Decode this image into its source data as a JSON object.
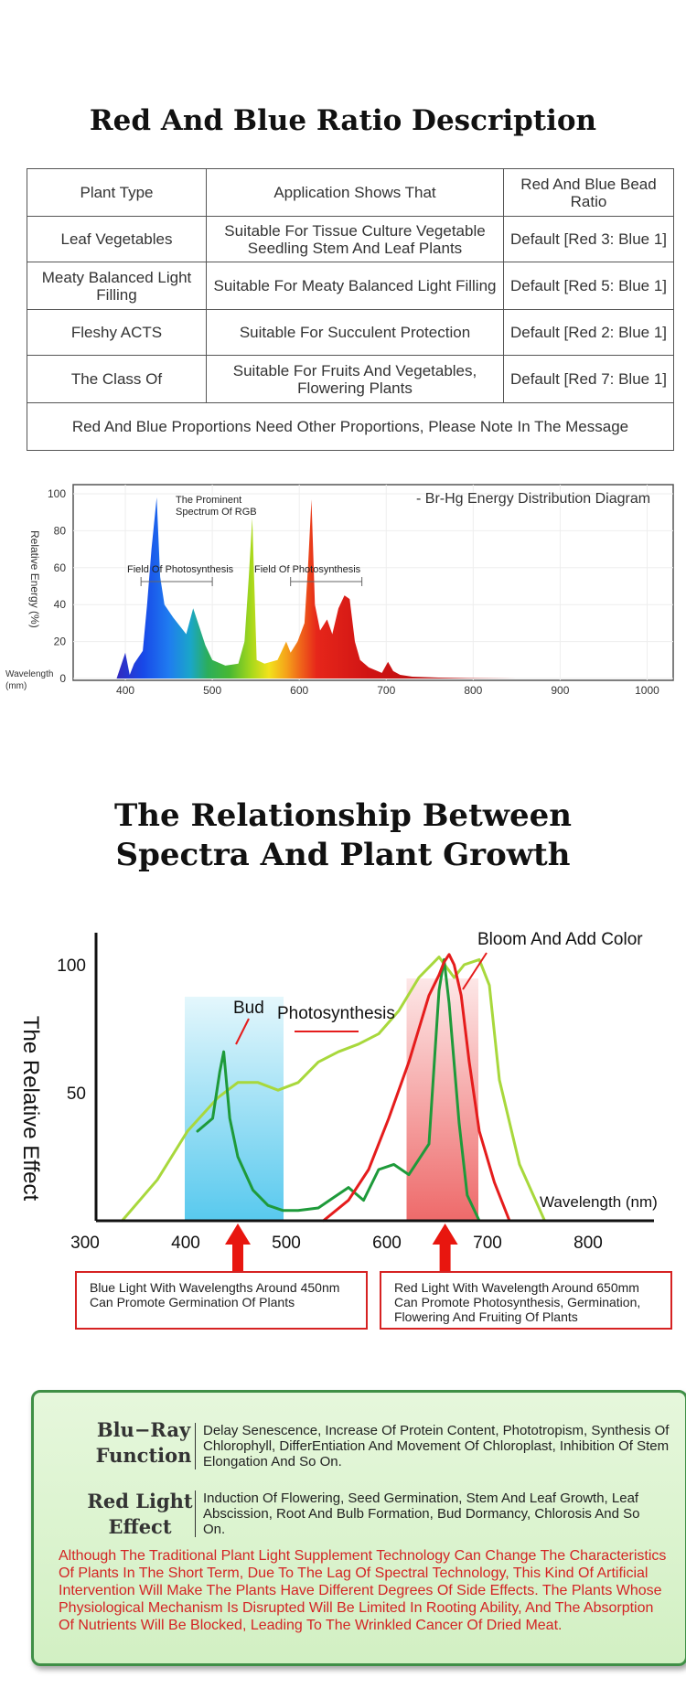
{
  "ratio_section": {
    "title": "Red And Blue Ratio Description",
    "headers": [
      "Plant Type",
      "Application Shows That",
      "Red And Blue Bead Ratio"
    ],
    "rows": [
      {
        "plant": "Leaf Vegetables",
        "application": "Suitable For Tissue Culture Vegetable Seedling Stem And Leaf Plants",
        "ratio": "Default [Red 3: Blue 1]"
      },
      {
        "plant": "Meaty Balanced Light Filling",
        "application": "Suitable For Meaty Balanced Light Filling",
        "ratio": "Default [Red 5: Blue 1]"
      },
      {
        "plant": "Fleshy ACTS",
        "application": "Suitable For Succulent Protection",
        "ratio": "Default [Red 2: Blue 1]"
      },
      {
        "plant": "The Class Of",
        "application": "Suitable For Fruits And Vegetables, Flowering Plants",
        "ratio": "Default [Red 7: Blue 1]"
      }
    ],
    "footer": "Red And Blue Proportions Need Other Proportions, Please Note In The Message"
  },
  "chart_data": [
    {
      "type": "area",
      "title": "- Br-Hg Energy Distribution Diagram",
      "xlabel": "Wavelength (mm)",
      "ylabel": "Relative Energy (%)",
      "xlim": [
        340,
        1030
      ],
      "ylim": [
        0,
        100
      ],
      "x_ticks": [
        400,
        500,
        600,
        700,
        800,
        900,
        1000
      ],
      "y_ticks": [
        0,
        20,
        40,
        60,
        80,
        100
      ],
      "series": [
        {
          "x": [
            390,
            400,
            405,
            410,
            420,
            425,
            430,
            436,
            440,
            445,
            455,
            470,
            478,
            485,
            492,
            500,
            515,
            530,
            537,
            542,
            546,
            551,
            560,
            575,
            585,
            590,
            598,
            606,
            610,
            614,
            618,
            624,
            632,
            638,
            645,
            652,
            658,
            664,
            670,
            680,
            695,
            702,
            708,
            716,
            730,
            760,
            800,
            850
          ],
          "values": [
            0,
            14,
            2,
            8,
            15,
            40,
            70,
            98,
            55,
            40,
            33,
            24,
            38,
            28,
            18,
            10,
            7,
            8,
            20,
            55,
            87,
            10,
            8,
            10,
            20,
            14,
            20,
            30,
            60,
            97,
            40,
            26,
            32,
            24,
            38,
            45,
            43,
            20,
            10,
            6,
            3,
            9,
            4,
            2,
            1,
            0.5,
            0.2,
            0
          ]
        }
      ],
      "annotations": [
        "The Prominent Spectrum Of RGB",
        "Field Of Photosynthesis",
        "Field Of Photosynthesis"
      ]
    },
    {
      "type": "line",
      "ylabel": "The Relative Effect",
      "xlabel": "Wavelength (nm)",
      "xlim": [
        300,
        850
      ],
      "ylim": [
        0,
        110
      ],
      "x_ticks": [
        300,
        400,
        500,
        600,
        700,
        800
      ],
      "y_ticks": [
        50,
        100
      ],
      "series": [
        {
          "name": "Photosynthesis",
          "x": [
            335,
            370,
            400,
            430,
            450,
            470,
            490,
            510,
            530,
            550,
            570,
            590,
            610,
            630,
            650,
            665,
            675,
            690,
            700,
            710,
            730,
            755
          ],
          "values": [
            0,
            16,
            35,
            48,
            54,
            54,
            51,
            54,
            62,
            66,
            69,
            73,
            82,
            95,
            103,
            95,
            100,
            102,
            92,
            55,
            22,
            0
          ]
        },
        {
          "name": "Bud",
          "x": [
            410,
            425,
            432,
            436,
            442,
            450,
            465,
            480,
            495,
            510,
            530,
            545,
            560,
            575,
            590,
            605,
            620,
            640,
            650,
            655,
            660,
            670,
            678,
            690
          ],
          "values": [
            35,
            40,
            58,
            66,
            40,
            25,
            12,
            6,
            4,
            4,
            5,
            9,
            13,
            8,
            20,
            22,
            18,
            30,
            90,
            102,
            85,
            38,
            10,
            0
          ]
        },
        {
          "name": "Bloom And Add Color",
          "x": [
            535,
            560,
            580,
            600,
            620,
            630,
            640,
            650,
            655,
            660,
            665,
            672,
            680,
            690,
            705,
            720
          ],
          "values": [
            0,
            8,
            20,
            40,
            62,
            75,
            88,
            96,
            101,
            104,
            100,
            88,
            62,
            35,
            15,
            0
          ]
        }
      ],
      "bands": [
        {
          "label": "blue",
          "from": 400,
          "to": 500
        },
        {
          "label": "red",
          "from": 625,
          "to": 700
        }
      ],
      "annotations": [
        "Bud",
        "Photosynthesis",
        "Bloom And Add Color"
      ],
      "callouts": [
        "Blue Light With Wavelengths Around 450nm Can Promote Germination Of Plants",
        "Red Light With Wavelength Around 650mm Can Promote Photosynthesis, Germination, Flowering And Fruiting Of Plants"
      ]
    }
  ],
  "relationship_section": {
    "title_line1": "The Relationship Between",
    "title_line2": "Spectra And Plant Growth"
  },
  "function_panel": {
    "blue_label_1": "Blu−Ray",
    "blue_label_2": "Function",
    "blue_text": "Delay Senescence, Increase Of Protein Content, Phototropism, Synthesis Of Chlorophyll, DifferEntiation And Movement Of Chloroplast, Inhibition Of Stem Elongation And So On.",
    "red_label_1": "Red Light",
    "red_label_2": "Effect",
    "red_text": "Induction Of Flowering, Seed Germination, Stem And Leaf Growth, Leaf Abscission, Root And Bulb Formation, Bud Dormancy, Chlorosis And So On.",
    "warning": "Although The Traditional Plant Light Supplement Technology Can Change The Characteristics Of Plants In The Short Term, Due To The Lag Of Spectral Technology, This Kind Of Artificial Intervention Will Make The Plants Have Different Degrees Of Side Effects. The Plants Whose Physiological Mechanism Is Disrupted Will Be Limited In Rooting Ability, And The Absorption Of Nutrients Will Be Blocked, Leading To The Wrinkled Cancer Of Dried Meat.",
    "colors": {
      "panel_bg": "#d6f1c8",
      "panel_border": "#3f8f46",
      "warning": "#d42424"
    }
  }
}
